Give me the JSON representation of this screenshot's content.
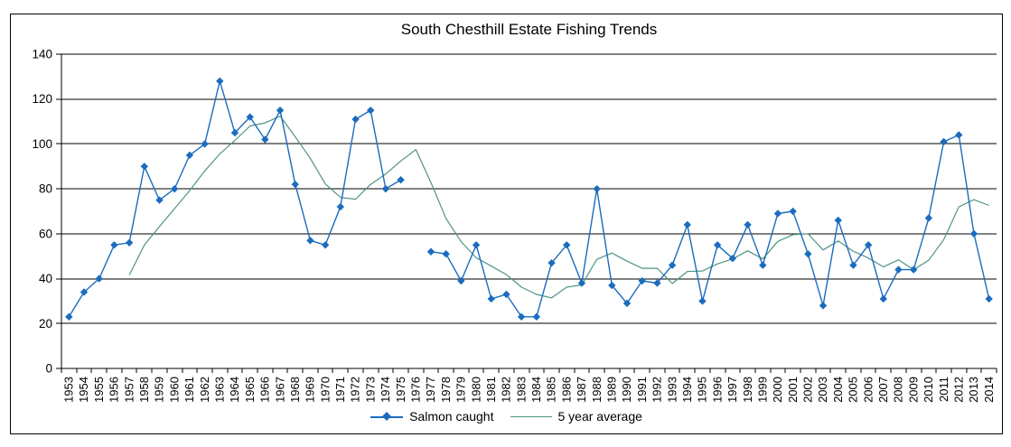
{
  "chart": {
    "title": "South Chesthill Estate Fishing Trends",
    "colors": {
      "salmon": "#1b6cbe",
      "average": "#4f9585",
      "axis": "#000000",
      "text": "#000000",
      "background": "#ffffff"
    },
    "legend": [
      {
        "label": "Salmon caught",
        "series": "salmon",
        "swatch": "line-with-diamond-marker"
      },
      {
        "label": "5 year average",
        "series": "average",
        "swatch": "plain-line"
      }
    ]
  },
  "chart_data": {
    "type": "line",
    "title": "South Chesthill Estate Fishing Trends",
    "xlabel": "",
    "ylabel": "",
    "ylim": [
      0,
      140
    ],
    "yticks": [
      0,
      20,
      40,
      60,
      80,
      100,
      120,
      140
    ],
    "grid": true,
    "legend_position": "bottom",
    "x": [
      1953,
      1954,
      1955,
      1956,
      1957,
      1958,
      1959,
      1960,
      1961,
      1962,
      1963,
      1964,
      1965,
      1966,
      1967,
      1968,
      1969,
      1970,
      1971,
      1972,
      1973,
      1974,
      1975,
      1976,
      1977,
      1978,
      1979,
      1980,
      1981,
      1982,
      1983,
      1984,
      1985,
      1986,
      1987,
      1988,
      1989,
      1990,
      1991,
      1992,
      1993,
      1994,
      1995,
      1996,
      1997,
      1998,
      1999,
      2000,
      2001,
      2002,
      2003,
      2004,
      2005,
      2006,
      2007,
      2008,
      2009,
      2010,
      2011,
      2012,
      2013,
      2014
    ],
    "series": [
      {
        "name": "Salmon caught",
        "marker": "diamond",
        "color": "#1b6cbe",
        "values": [
          23,
          34,
          40,
          55,
          56,
          90,
          75,
          80,
          95,
          100,
          128,
          105,
          112,
          102,
          115,
          82,
          57,
          55,
          72,
          111,
          115,
          80,
          84,
          null,
          52,
          51,
          39,
          55,
          31,
          33,
          23,
          23,
          47,
          55,
          38,
          80,
          37,
          29,
          39,
          38,
          46,
          64,
          30,
          55,
          49,
          64,
          46,
          69,
          70,
          51,
          28,
          66,
          46,
          55,
          31,
          44,
          44,
          67,
          101,
          104,
          60,
          31
        ]
      },
      {
        "name": "5 year average",
        "marker": "none",
        "color": "#4f9585",
        "values": [
          null,
          null,
          null,
          null,
          41.6,
          55,
          63.2,
          71.2,
          79.2,
          88,
          95.6,
          101.6,
          108,
          109.4,
          112.4,
          103.2,
          93.6,
          82.2,
          76.2,
          75.4,
          82,
          86.6,
          92.4,
          97.5,
          82.8,
          66.8,
          56.5,
          49.3,
          45.6,
          41.8,
          36.2,
          33,
          31.4,
          36.2,
          37.2,
          48.6,
          51.4,
          47.8,
          44.6,
          44.6,
          37.8,
          43.2,
          43.4,
          46.6,
          48.8,
          52.4,
          48.8,
          56.6,
          59.6,
          60,
          52.8,
          56.8,
          52.2,
          49.2,
          45.2,
          48.4,
          44,
          48.2,
          57.4,
          72,
          75.2,
          72.6
        ]
      }
    ]
  }
}
